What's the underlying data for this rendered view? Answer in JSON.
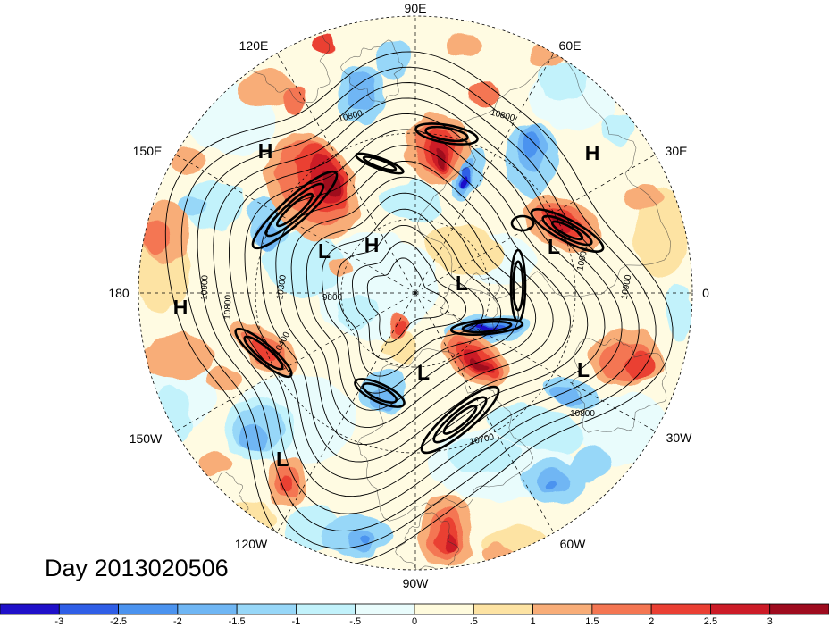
{
  "map": {
    "title": "Day 2013020506",
    "longitude_labels": [
      "90E",
      "60E",
      "30E",
      "0",
      "30W",
      "60W",
      "90W",
      "120W",
      "150W",
      "180",
      "150E",
      "120E"
    ],
    "pressure_centers": [
      "H",
      "H",
      "L",
      "H",
      "L",
      "L",
      "H",
      "L",
      "L",
      "L"
    ],
    "contour_labels": [
      "10800",
      "10800",
      "10300",
      "9800",
      "10400",
      "10800",
      "10900",
      "10600",
      "10900",
      "10800",
      "10700"
    ]
  },
  "colorbar": {
    "colors": [
      "#1f10c9",
      "#2f5ee6",
      "#4b93ef",
      "#6fb6f4",
      "#97d7f8",
      "#c2f2fb",
      "#e9fcfc",
      "#fffbdd",
      "#fde3a3",
      "#f8ad78",
      "#f47652",
      "#ea3f33",
      "#cc1b27",
      "#9e0b1e"
    ],
    "labels": [
      "-3",
      "-2.5",
      "-2",
      "-1.5",
      "-1",
      "-.5",
      "0",
      ".5",
      "1",
      "1.5",
      "2",
      "2.5",
      "3"
    ]
  }
}
